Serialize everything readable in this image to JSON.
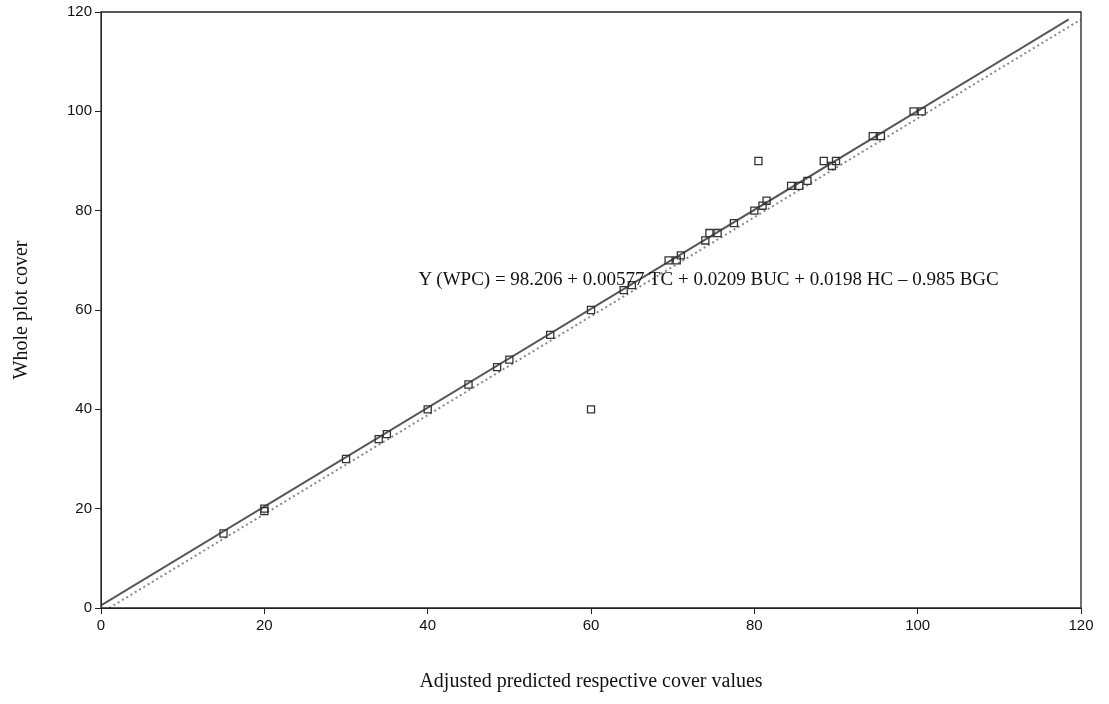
{
  "chart_data": {
    "type": "scatter",
    "xlabel": "Adjusted predicted respective cover values",
    "ylabel": "Whole plot cover",
    "annotations": [
      "Y (WPC) = 98.206 + 0.00577 TC + 0.0209 BUC + 0.0198 HC – 0.985 BGC"
    ],
    "xlim": [
      0,
      120
    ],
    "ylim": [
      0,
      120
    ],
    "xticks": [
      0,
      20,
      40,
      60,
      80,
      100,
      120
    ],
    "yticks": [
      0,
      20,
      40,
      60,
      80,
      100,
      120
    ],
    "grid": false,
    "legend": false,
    "marker": "square",
    "series": [
      {
        "color": "#333333",
        "x": [
          15,
          20,
          20,
          30,
          34,
          35,
          40,
          45,
          48.5,
          50,
          55,
          60,
          60,
          64,
          65,
          69.5,
          70.5,
          71,
          74,
          74.5,
          75.5,
          77.5,
          80,
          80.5,
          81,
          81.5,
          84.5,
          85.5,
          86.5,
          88.5,
          89.5,
          90,
          94.5,
          95.5,
          99.5,
          100.5
        ],
        "values": [
          15,
          20,
          19.5,
          30,
          34,
          35,
          40,
          45,
          48.5,
          50,
          55,
          60,
          40,
          64,
          65,
          70,
          70,
          71,
          74,
          75.5,
          75.5,
          77.5,
          80,
          90,
          81,
          82,
          85,
          85,
          86,
          90,
          89,
          90,
          95,
          95,
          100,
          100
        ]
      },
      {
        "type": "line",
        "color": "#555555",
        "marker": "none",
        "line_style": "solid",
        "x": [
          0,
          118.5
        ],
        "values": [
          0.5,
          118.5
        ]
      },
      {
        "type": "line",
        "color": "#888888",
        "marker": "none",
        "line_style": "dotted",
        "x": [
          1,
          120
        ],
        "values": [
          0,
          118.5
        ]
      }
    ]
  }
}
